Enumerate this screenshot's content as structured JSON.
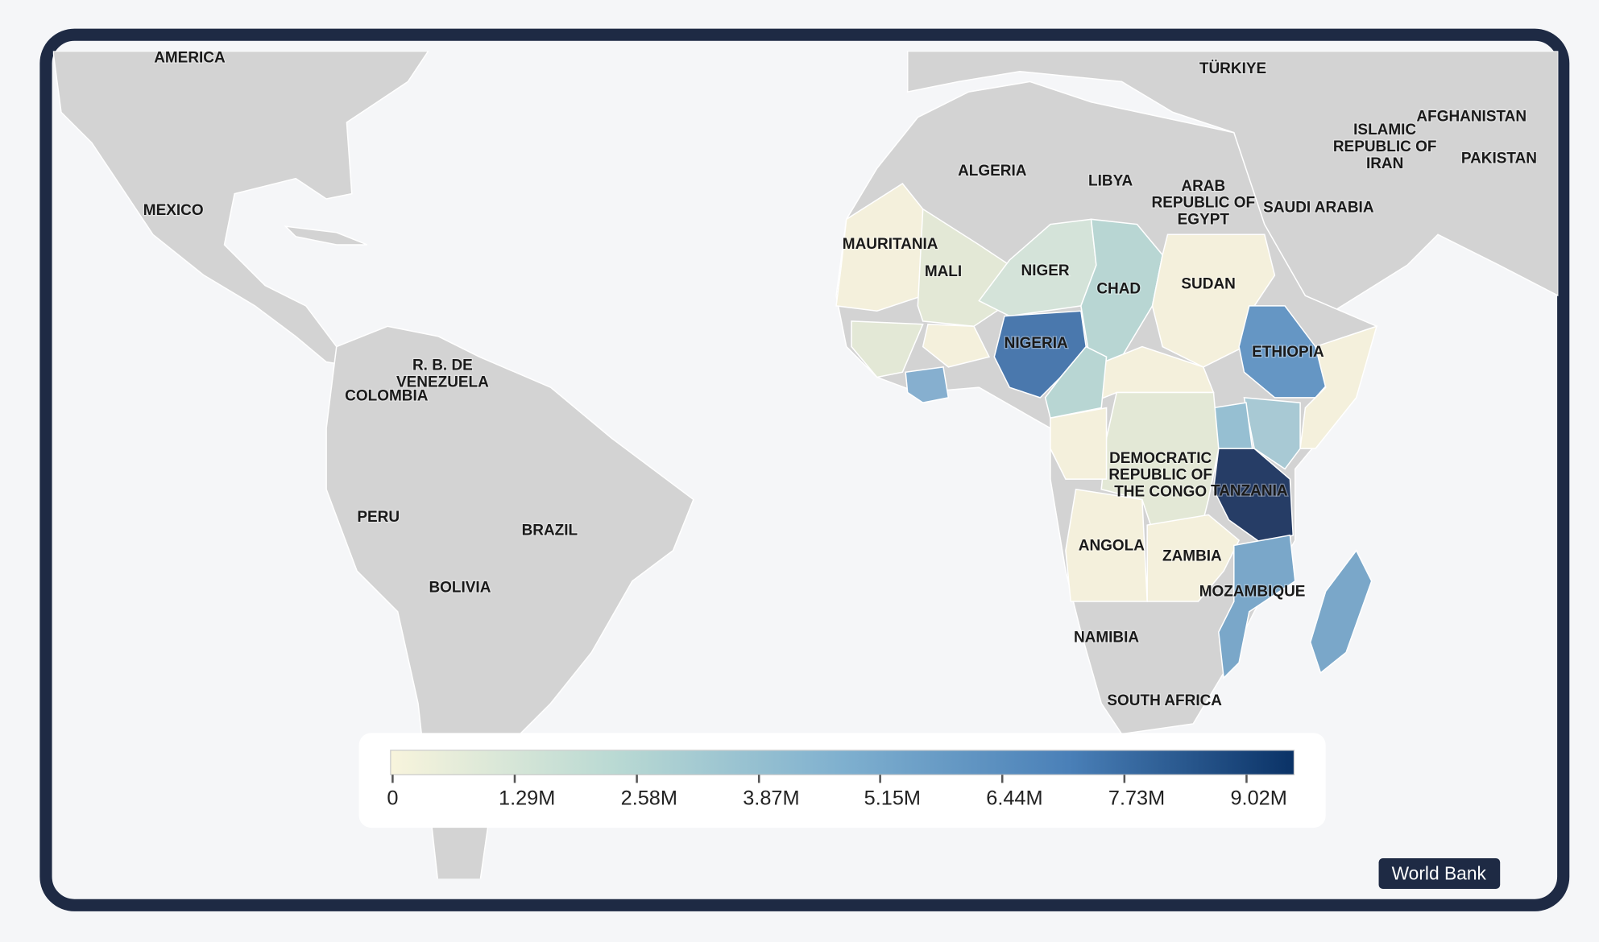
{
  "map": {
    "labels": [
      {
        "lines": [
          "AMERICA"
        ]
      },
      {
        "lines": [
          "TÜRKIYE"
        ]
      },
      {
        "lines": [
          "AFGHANISTAN"
        ]
      },
      {
        "lines": [
          "ISLAMIC",
          "REPUBLIC OF",
          "IRAN"
        ]
      },
      {
        "lines": [
          "PAKISTAN"
        ]
      },
      {
        "lines": [
          "MEXICO"
        ]
      },
      {
        "lines": [
          "ALGERIA"
        ]
      },
      {
        "lines": [
          "LIBYA"
        ]
      },
      {
        "lines": [
          "ARAB",
          "REPUBLIC OF",
          "EGYPT"
        ]
      },
      {
        "lines": [
          "SAUDI ARABIA"
        ]
      },
      {
        "lines": [
          "MAURITANIA"
        ]
      },
      {
        "lines": [
          "MALI"
        ]
      },
      {
        "lines": [
          "NIGER"
        ]
      },
      {
        "lines": [
          "CHAD"
        ]
      },
      {
        "lines": [
          "SUDAN"
        ]
      },
      {
        "lines": [
          "NIGERIA"
        ]
      },
      {
        "lines": [
          "ETHIOPIA"
        ]
      },
      {
        "lines": [
          "R. B. DE",
          "VENEZUELA"
        ]
      },
      {
        "lines": [
          "COLOMBIA"
        ]
      },
      {
        "lines": [
          "DEMOCRATIC",
          "REPUBLIC OF",
          "THE CONGO"
        ]
      },
      {
        "lines": [
          "TANZANIA"
        ]
      },
      {
        "lines": [
          "PERU"
        ]
      },
      {
        "lines": [
          "BRAZIL"
        ]
      },
      {
        "lines": [
          "ANGOLA"
        ]
      },
      {
        "lines": [
          "ZAMBIA"
        ]
      },
      {
        "lines": [
          "BOLIVIA"
        ]
      },
      {
        "lines": [
          "MOZAMBIQUE"
        ]
      },
      {
        "lines": [
          "NAMIBIA"
        ]
      },
      {
        "lines": [
          "SOUTH AFRICA"
        ]
      }
    ]
  },
  "legend": {
    "lim": [
      0,
      9490000
    ],
    "ticks": [
      0,
      {
        "value": 1290000,
        "label": "1.29M"
      },
      {
        "value": 2580000,
        "label": "2.58M"
      },
      {
        "value": 3870000,
        "label": "3.87M"
      },
      {
        "value": 5150000,
        "label": "5.15M"
      },
      {
        "value": 6440000,
        "label": "6.44M"
      },
      {
        "value": 7730000,
        "label": "7.73M"
      },
      {
        "value": 9020000,
        "label": "9.02M"
      }
    ]
  },
  "source": "World Bank"
}
